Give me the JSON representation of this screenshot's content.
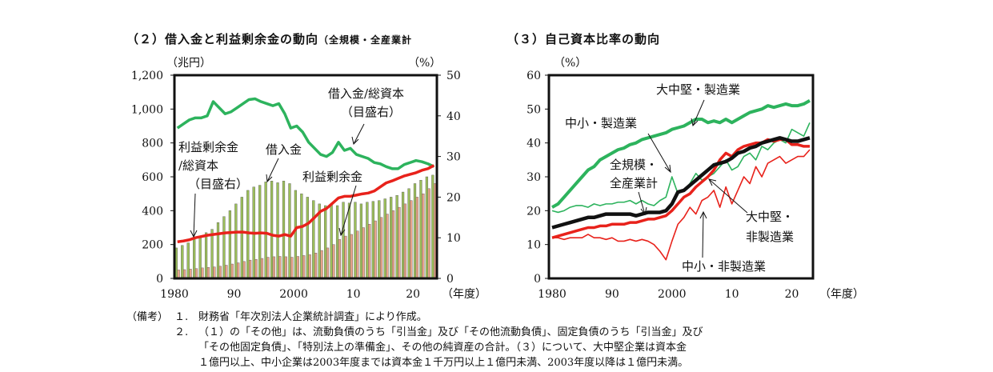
{
  "panel_left": {
    "title": "（２）借入金と利益剰余金の動向",
    "title_suffix": "（全規模・全産業計"
  },
  "panel_right": {
    "title": "（３）自己資本比率の動向"
  },
  "notes": {
    "label": "（備考）",
    "items": [
      {
        "num": "１.",
        "text": "財務省「年次別法人企業統計調査」により作成。"
      },
      {
        "num": "２.",
        "text": "（１）の「その他」は、流動負債のうち「引当金」及び「その他流動負債」、固定負債のうち「引当金」及び"
      },
      {
        "num": "",
        "text": "「その他固定負債」、「特別法上の準備金」、その他の純資産の合計。（３）について、大中堅企業は資本金"
      },
      {
        "num": "",
        "text": "１億円以上、中小企業は2003年度までは資本金１千万円以上１億円未満、2003年度以降は１億円未満。"
      }
    ]
  },
  "chart_data": [
    {
      "type": "bar",
      "grid": false,
      "xlabel": "（年度）",
      "x_ticks": [
        "1980",
        "90",
        "2000",
        "10",
        "20"
      ],
      "x_tick_years": [
        1980,
        1990,
        2000,
        2010,
        2020
      ],
      "x": [
        1980,
        1981,
        1982,
        1983,
        1984,
        1985,
        1986,
        1987,
        1988,
        1989,
        1990,
        1991,
        1992,
        1993,
        1994,
        1995,
        1996,
        1997,
        1998,
        1999,
        2000,
        2001,
        2002,
        2003,
        2004,
        2005,
        2006,
        2007,
        2008,
        2009,
        2010,
        2011,
        2012,
        2013,
        2014,
        2015,
        2016,
        2017,
        2018,
        2019,
        2020,
        2021,
        2022,
        2023
      ],
      "ylabel_left": "（兆円）",
      "ylim_left": [
        0,
        1200
      ],
      "y_ticks_left": [
        "0",
        "200",
        "400",
        "600",
        "800",
        "1,000",
        "1,200"
      ],
      "ylabel_right": "（%）",
      "ylim_right": [
        0,
        50
      ],
      "y_ticks_right": [
        "0",
        "10",
        "20",
        "30",
        "40",
        "50"
      ],
      "series": [
        {
          "name": "借入金",
          "kind": "bar",
          "axis": "left",
          "color": "#9cbf5a",
          "values": [
            180,
            195,
            210,
            230,
            250,
            270,
            290,
            330,
            365,
            400,
            440,
            480,
            520,
            540,
            550,
            570,
            575,
            565,
            575,
            560,
            520,
            500,
            480,
            460,
            440,
            430,
            440,
            430,
            450,
            445,
            450,
            440,
            450,
            455,
            460,
            470,
            480,
            490,
            510,
            530,
            560,
            580,
            600,
            610
          ]
        },
        {
          "name": "利益剰余金",
          "kind": "bar",
          "axis": "left",
          "color": "#e8a48a",
          "values": [
            50,
            52,
            55,
            58,
            62,
            65,
            68,
            72,
            78,
            85,
            92,
            100,
            108,
            112,
            118,
            125,
            128,
            130,
            128,
            125,
            130,
            135,
            140,
            150,
            165,
            180,
            200,
            230,
            250,
            260,
            280,
            300,
            320,
            340,
            360,
            380,
            400,
            420,
            440,
            460,
            480,
            500,
            530,
            560
          ]
        },
        {
          "name": "借入金/総資本（目盛右）",
          "kind": "line",
          "axis": "right",
          "color": "#2db35d",
          "values": [
            37,
            38,
            39,
            39.5,
            39.5,
            40,
            43.5,
            42,
            40.5,
            41,
            42,
            43,
            44,
            44.2,
            43.5,
            43,
            42.5,
            43,
            40.5,
            37,
            37.5,
            36,
            33.5,
            32,
            30.5,
            30,
            31,
            33.5,
            31.5,
            32,
            30.5,
            30,
            29.5,
            28.5,
            28.2,
            27.5,
            27,
            27,
            28,
            28.5,
            29,
            28.7,
            28.2,
            27.5
          ]
        },
        {
          "name": "利益剰余金/総資本（目盛右）",
          "kind": "line",
          "axis": "right",
          "color": "#e8221b",
          "values": [
            9,
            9.2,
            9.5,
            10,
            10.3,
            10.6,
            10.8,
            11,
            11.2,
            11.3,
            11.4,
            11.4,
            11.2,
            11.1,
            11.2,
            11.1,
            10.6,
            10.4,
            10.8,
            10.4,
            12.5,
            12.8,
            13.6,
            15,
            16.5,
            17.2,
            18.5,
            19.8,
            20.2,
            20.2,
            20.5,
            20.8,
            21,
            21.5,
            22.5,
            23.5,
            24,
            24.6,
            25.2,
            25.6,
            26,
            26.6,
            27,
            27.8
          ]
        }
      ],
      "annotations": [
        "借入金/総資本",
        "（目盛右）",
        "借入金",
        "利益剰余金",
        "/総資本",
        "利益剰余金"
      ]
    },
    {
      "type": "line",
      "grid": false,
      "xlabel": "（年度）",
      "x_ticks": [
        "1980",
        "90",
        "2000",
        "10",
        "20"
      ],
      "x_tick_years": [
        1980,
        1990,
        2000,
        2010,
        2020
      ],
      "x": [
        1980,
        1981,
        1982,
        1983,
        1984,
        1985,
        1986,
        1987,
        1988,
        1989,
        1990,
        1991,
        1992,
        1993,
        1994,
        1995,
        1996,
        1997,
        1998,
        1999,
        2000,
        2001,
        2002,
        2003,
        2004,
        2005,
        2006,
        2007,
        2008,
        2009,
        2010,
        2011,
        2012,
        2013,
        2014,
        2015,
        2016,
        2017,
        2018,
        2019,
        2020,
        2021,
        2022,
        2023
      ],
      "ylabel": "（%）",
      "ylim": [
        0,
        60
      ],
      "y_ticks": [
        "0",
        "10",
        "20",
        "30",
        "40",
        "50",
        "60"
      ],
      "series": [
        {
          "name": "大中堅・製造業",
          "color": "#2db35d",
          "values": [
            21,
            22,
            24,
            26,
            28,
            30,
            32,
            33,
            35,
            36,
            37,
            38,
            38.5,
            39.5,
            40,
            41,
            41.5,
            42,
            42.5,
            43,
            44,
            44.5,
            45,
            46,
            47,
            47,
            46,
            46.5,
            46,
            47,
            46,
            47,
            48,
            49,
            49.5,
            50,
            51,
            50.5,
            51,
            51.5,
            51,
            51,
            51.5,
            52.5
          ]
        },
        {
          "name": "中小・製造業",
          "color": "#2db35d",
          "values": [
            20,
            19.5,
            20,
            21,
            21.5,
            21.5,
            21,
            22,
            21.5,
            22,
            22,
            22.5,
            22.5,
            23,
            22,
            23,
            22,
            21.5,
            23,
            24,
            30,
            25,
            26,
            28,
            31,
            29,
            30,
            31,
            33,
            35,
            32,
            33,
            36,
            37,
            35,
            39,
            38,
            40,
            41,
            40,
            44,
            43,
            42,
            46
          ]
        },
        {
          "name": "全規模・全産業計",
          "color": "#111111",
          "values": [
            15,
            15.5,
            16,
            16.5,
            17,
            17.5,
            18,
            18,
            18.5,
            19,
            19,
            19,
            19,
            19,
            18.5,
            19,
            19.5,
            19.5,
            19.5,
            20,
            22,
            25.5,
            26,
            27.5,
            29,
            30.5,
            32,
            33.5,
            34,
            34.5,
            35.5,
            37,
            37.5,
            38.5,
            39,
            40,
            40.5,
            41,
            41.5,
            41,
            40.5,
            40.5,
            41,
            41.5
          ]
        },
        {
          "name": "大中堅・非製造業",
          "color": "#e8221b",
          "values": [
            12,
            12.5,
            13,
            13.5,
            14,
            14.5,
            15,
            15,
            15.5,
            15.5,
            16,
            16,
            16,
            16.5,
            16.5,
            17,
            17.5,
            17.5,
            18,
            18.5,
            20,
            22,
            24,
            25,
            27,
            28.5,
            30,
            32,
            35,
            37,
            36,
            38,
            39,
            39.5,
            40,
            40,
            41,
            40.5,
            41,
            41,
            39.5,
            39.5,
            39,
            39
          ]
        },
        {
          "name": "中小・非製造業",
          "color": "#e8221b",
          "values": [
            12,
            12,
            11.5,
            12,
            12,
            12,
            13,
            12,
            12,
            11.5,
            12,
            11,
            11,
            11.5,
            11,
            11.5,
            11,
            10,
            8,
            5.5,
            11,
            16,
            18,
            21,
            19,
            23,
            24,
            26,
            21,
            27,
            22,
            26,
            30,
            28,
            33,
            30,
            34,
            35,
            36,
            34,
            35,
            36,
            36,
            38
          ]
        }
      ],
      "annotations": [
        "大中堅・製造業",
        "中小・製造業",
        "全規模・",
        "全産業計",
        "大中堅・",
        "非製造業",
        "中小・非製造業"
      ]
    }
  ]
}
